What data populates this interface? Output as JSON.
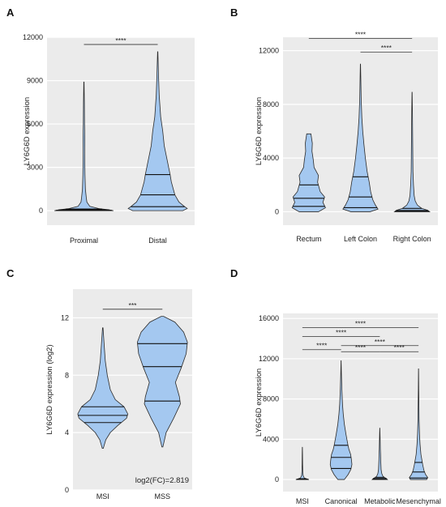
{
  "chart_data": [
    {
      "panel": "A",
      "type": "violin",
      "ylabel": "LY6G6D expression",
      "ylim": [
        -1000,
        12000
      ],
      "yticks": [
        0,
        3000,
        6000,
        9000,
        12000
      ],
      "categories": [
        "Proximal",
        "Distal"
      ],
      "violins": [
        {
          "name": "Proximal",
          "min": 0,
          "max": 8900,
          "quartiles": [
            20,
            60,
            120
          ],
          "profile": [
            [
              0,
              1.0
            ],
            [
              60,
              0.85
            ],
            [
              150,
              0.5
            ],
            [
              300,
              0.2
            ],
            [
              600,
              0.1
            ],
            [
              900,
              0.08
            ],
            [
              1500,
              0.05
            ],
            [
              2500,
              0.035
            ],
            [
              4000,
              0.025
            ],
            [
              5000,
              0.03
            ],
            [
              6000,
              0.02
            ],
            [
              7500,
              0.015
            ],
            [
              8900,
              0.005
            ]
          ]
        },
        {
          "name": "Distal",
          "min": 0,
          "max": 11000,
          "quartiles": [
            280,
            1100,
            2500
          ],
          "profile": [
            [
              0,
              0.85
            ],
            [
              150,
              1.0
            ],
            [
              300,
              0.9
            ],
            [
              600,
              0.72
            ],
            [
              1100,
              0.58
            ],
            [
              2000,
              0.46
            ],
            [
              2500,
              0.42
            ],
            [
              3500,
              0.32
            ],
            [
              4500,
              0.22
            ],
            [
              5500,
              0.17
            ],
            [
              6500,
              0.1
            ],
            [
              8000,
              0.05
            ],
            [
              9500,
              0.025
            ],
            [
              11000,
              0.005
            ]
          ]
        }
      ],
      "comparisons": [
        {
          "from": "Proximal",
          "to": "Distal",
          "y": 11500,
          "label": "****"
        }
      ]
    },
    {
      "panel": "B",
      "type": "violin",
      "ylabel": "LY6G6D expression",
      "ylim": [
        -1000,
        13000
      ],
      "yticks": [
        0,
        4000,
        8000,
        12000
      ],
      "categories": [
        "Rectum",
        "Left Colon",
        "Right Colon"
      ],
      "violins": [
        {
          "name": "Rectum",
          "min": 0,
          "max": 5800,
          "quartiles": [
            400,
            1000,
            2000
          ],
          "profile": [
            [
              0,
              0.55
            ],
            [
              300,
              0.95
            ],
            [
              700,
              0.8
            ],
            [
              1100,
              0.9
            ],
            [
              1500,
              0.65
            ],
            [
              2200,
              0.5
            ],
            [
              2700,
              0.55
            ],
            [
              3300,
              0.3
            ],
            [
              3900,
              0.25
            ],
            [
              4500,
              0.18
            ],
            [
              5100,
              0.2
            ],
            [
              5800,
              0.12
            ]
          ]
        },
        {
          "name": "Left Colon",
          "min": 0,
          "max": 11000,
          "quartiles": [
            300,
            1100,
            2600
          ],
          "profile": [
            [
              0,
              0.55
            ],
            [
              200,
              1.0
            ],
            [
              500,
              0.85
            ],
            [
              900,
              0.7
            ],
            [
              1500,
              0.58
            ],
            [
              2200,
              0.5
            ],
            [
              3000,
              0.38
            ],
            [
              4000,
              0.28
            ],
            [
              5000,
              0.2
            ],
            [
              6000,
              0.13
            ],
            [
              7000,
              0.08
            ],
            [
              8500,
              0.04
            ],
            [
              10000,
              0.02
            ],
            [
              11000,
              0.005
            ]
          ]
        },
        {
          "name": "Right Colon",
          "min": 0,
          "max": 8900,
          "quartiles": [
            30,
            100,
            250
          ],
          "profile": [
            [
              0,
              1.0
            ],
            [
              100,
              0.9
            ],
            [
              250,
              0.55
            ],
            [
              500,
              0.3
            ],
            [
              800,
              0.18
            ],
            [
              1200,
              0.12
            ],
            [
              2000,
              0.08
            ],
            [
              3000,
              0.05
            ],
            [
              4500,
              0.04
            ],
            [
              6000,
              0.03
            ],
            [
              7500,
              0.02
            ],
            [
              8900,
              0.005
            ]
          ]
        }
      ],
      "comparisons": [
        {
          "from": "Rectum",
          "to": "Right Colon",
          "y": 12900,
          "label": "****"
        },
        {
          "from": "Left Colon",
          "to": "Right Colon",
          "y": 11900,
          "label": "****"
        }
      ]
    },
    {
      "panel": "C",
      "type": "violin",
      "ylabel": "LY6G6D expression (log2)",
      "ylim": [
        0,
        14
      ],
      "yticks": [
        0,
        4,
        8,
        12
      ],
      "categories": [
        "MSI",
        "MSS"
      ],
      "violins": [
        {
          "name": "MSI",
          "min": 2.9,
          "max": 11.3,
          "quartiles": [
            4.7,
            5.2,
            5.8
          ],
          "profile": [
            [
              2.9,
              0.02
            ],
            [
              3.5,
              0.12
            ],
            [
              4.0,
              0.3
            ],
            [
              4.5,
              0.6
            ],
            [
              5.0,
              0.95
            ],
            [
              5.3,
              1.0
            ],
            [
              5.8,
              0.85
            ],
            [
              6.3,
              0.5
            ],
            [
              7.0,
              0.3
            ],
            [
              8.0,
              0.18
            ],
            [
              9.0,
              0.1
            ],
            [
              10.0,
              0.06
            ],
            [
              11.3,
              0.01
            ]
          ]
        },
        {
          "name": "MSS",
          "min": 3.0,
          "max": 12.1,
          "quartiles": [
            6.2,
            8.6,
            10.2
          ],
          "profile": [
            [
              3.0,
              0.02
            ],
            [
              4.0,
              0.15
            ],
            [
              5.0,
              0.45
            ],
            [
              6.0,
              0.72
            ],
            [
              6.5,
              0.68
            ],
            [
              7.5,
              0.52
            ],
            [
              8.5,
              0.75
            ],
            [
              9.5,
              0.95
            ],
            [
              10.3,
              1.0
            ],
            [
              11.0,
              0.85
            ],
            [
              11.7,
              0.5
            ],
            [
              12.1,
              0.05
            ]
          ]
        }
      ],
      "comparisons": [
        {
          "from": "MSI",
          "to": "MSS",
          "y": 12.6,
          "label": "***"
        }
      ],
      "annotation": "log2(FC)=2.819"
    },
    {
      "panel": "D",
      "type": "violin",
      "ylabel": "LY6G6D expression",
      "ylim": [
        -1200,
        16500
      ],
      "yticks": [
        0,
        4000,
        8000,
        12000,
        16000
      ],
      "categories": [
        "MSI",
        "Canonical",
        "Metabolic",
        "Mesenchymal"
      ],
      "violins": [
        {
          "name": "MSI",
          "min": 0,
          "max": 3200,
          "quartiles": [
            15,
            40,
            80
          ],
          "profile": [
            [
              0,
              0.6
            ],
            [
              50,
              0.45
            ],
            [
              150,
              0.18
            ],
            [
              400,
              0.07
            ],
            [
              800,
              0.04
            ],
            [
              1500,
              0.025
            ],
            [
              2500,
              0.015
            ],
            [
              3200,
              0.005
            ]
          ]
        },
        {
          "name": "Canonical",
          "min": 0,
          "max": 11800,
          "quartiles": [
            1100,
            2200,
            3400
          ],
          "profile": [
            [
              0,
              0.3
            ],
            [
              500,
              0.65
            ],
            [
              1000,
              0.9
            ],
            [
              1500,
              1.0
            ],
            [
              2000,
              0.95
            ],
            [
              2500,
              0.88
            ],
            [
              3000,
              0.72
            ],
            [
              3500,
              0.62
            ],
            [
              4500,
              0.45
            ],
            [
              5500,
              0.3
            ],
            [
              6500,
              0.2
            ],
            [
              7500,
              0.13
            ],
            [
              9000,
              0.07
            ],
            [
              10500,
              0.03
            ],
            [
              11800,
              0.005
            ]
          ]
        },
        {
          "name": "Metabolic",
          "min": 0,
          "max": 5100,
          "quartiles": [
            30,
            100,
            220
          ],
          "profile": [
            [
              0,
              0.7
            ],
            [
              100,
              0.6
            ],
            [
              300,
              0.3
            ],
            [
              600,
              0.18
            ],
            [
              1000,
              0.12
            ],
            [
              1500,
              0.1
            ],
            [
              2000,
              0.08
            ],
            [
              2500,
              0.07
            ],
            [
              3000,
              0.05
            ],
            [
              3800,
              0.035
            ],
            [
              4500,
              0.02
            ],
            [
              5100,
              0.005
            ]
          ]
        },
        {
          "name": "Mesenchymal",
          "min": 0,
          "max": 11000,
          "quartiles": [
            150,
            750,
            1700
          ],
          "profile": [
            [
              0,
              0.75
            ],
            [
              200,
              0.85
            ],
            [
              500,
              0.65
            ],
            [
              900,
              0.5
            ],
            [
              1500,
              0.38
            ],
            [
              2500,
              0.22
            ],
            [
              3500,
              0.14
            ],
            [
              4500,
              0.09
            ],
            [
              6000,
              0.05
            ],
            [
              7500,
              0.035
            ],
            [
              9000,
              0.02
            ],
            [
              11000,
              0.005
            ]
          ]
        }
      ],
      "comparisons": [
        {
          "from": "MSI",
          "to": "Mesenchymal",
          "y": 15100,
          "label": "****"
        },
        {
          "from": "MSI",
          "to": "Metabolic",
          "y": 14200,
          "label": "****"
        },
        {
          "from": "MSI",
          "to": "Canonical",
          "y": 12900,
          "label": "****"
        },
        {
          "from": "Canonical",
          "to": "Mesenchymal",
          "y": 13300,
          "label": "****"
        },
        {
          "from": "Canonical",
          "to": "Metabolic",
          "y": 12700,
          "label": "****"
        },
        {
          "from": "Metabolic",
          "to": "Mesenchymal",
          "y": 12700,
          "label": "****"
        }
      ]
    }
  ]
}
